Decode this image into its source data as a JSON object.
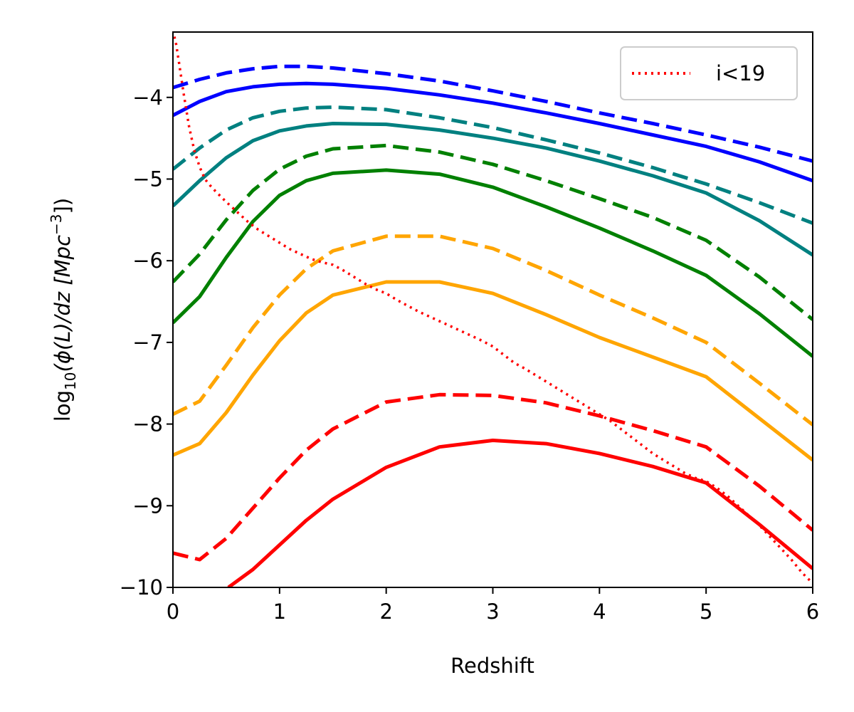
{
  "chart_data": {
    "type": "line",
    "xlabel": "Redshift",
    "ylabel_prefix": "log",
    "ylabel_sub": "10",
    "ylabel_main": "(ϕ(L)/dz [Mpc",
    "ylabel_sup": "−3",
    "ylabel_end": "])",
    "xlim": [
      0,
      6
    ],
    "ylim": [
      -10,
      -3.2
    ],
    "xticks": [
      0,
      1,
      2,
      3,
      4,
      5,
      6
    ],
    "xtick_labels": [
      "0",
      "1",
      "2",
      "3",
      "4",
      "5",
      "6"
    ],
    "yticks": [
      -10,
      -9,
      -8,
      -7,
      -6,
      -5,
      -4
    ],
    "ytick_labels": [
      "−10",
      "−9",
      "−8",
      "−7",
      "−6",
      "−5",
      "−4"
    ],
    "grid": false,
    "legend": {
      "position": "top-right",
      "entries": [
        {
          "label": "i<19",
          "color": "#ff0000",
          "style": "dotted"
        }
      ]
    },
    "series": [
      {
        "color": "#0000ff",
        "style": "dashed",
        "x": [
          0,
          0.25,
          0.5,
          0.75,
          1.0,
          1.25,
          1.5,
          2.0,
          2.5,
          3.0,
          3.5,
          4.0,
          4.5,
          5.0,
          5.5,
          6.0
        ],
        "y": [
          -3.88,
          -3.78,
          -3.7,
          -3.65,
          -3.62,
          -3.62,
          -3.64,
          -3.71,
          -3.8,
          -3.92,
          -4.05,
          -4.19,
          -4.32,
          -4.46,
          -4.61,
          -4.78
        ]
      },
      {
        "color": "#0000ff",
        "style": "solid",
        "x": [
          0,
          0.25,
          0.5,
          0.75,
          1.0,
          1.25,
          1.5,
          2.0,
          2.5,
          3.0,
          3.5,
          4.0,
          4.5,
          5.0,
          5.5,
          6.0
        ],
        "y": [
          -4.22,
          -4.05,
          -3.93,
          -3.87,
          -3.84,
          -3.83,
          -3.84,
          -3.89,
          -3.97,
          -4.07,
          -4.19,
          -4.32,
          -4.46,
          -4.6,
          -4.79,
          -5.02
        ]
      },
      {
        "color": "#008080",
        "style": "dashed",
        "x": [
          0,
          0.25,
          0.5,
          0.75,
          1.0,
          1.25,
          1.5,
          2.0,
          2.5,
          3.0,
          3.5,
          4.0,
          4.5,
          5.0,
          5.5,
          6.0
        ],
        "y": [
          -4.88,
          -4.62,
          -4.4,
          -4.25,
          -4.17,
          -4.13,
          -4.12,
          -4.15,
          -4.25,
          -4.37,
          -4.52,
          -4.68,
          -4.86,
          -5.06,
          -5.29,
          -5.54
        ]
      },
      {
        "color": "#008080",
        "style": "solid",
        "x": [
          0,
          0.25,
          0.5,
          0.75,
          1.0,
          1.25,
          1.5,
          2.0,
          2.5,
          3.0,
          3.5,
          4.0,
          4.5,
          5.0,
          5.5,
          6.0
        ],
        "y": [
          -5.33,
          -5.02,
          -4.74,
          -4.53,
          -4.41,
          -4.35,
          -4.32,
          -4.33,
          -4.4,
          -4.5,
          -4.62,
          -4.78,
          -4.96,
          -5.17,
          -5.51,
          -5.93
        ]
      },
      {
        "color": "#008000",
        "style": "dashed",
        "x": [
          0,
          0.25,
          0.5,
          0.75,
          1.0,
          1.25,
          1.5,
          2.0,
          2.5,
          3.0,
          3.5,
          4.0,
          4.5,
          5.0,
          5.5,
          6.0
        ],
        "y": [
          -6.26,
          -5.92,
          -5.5,
          -5.14,
          -4.88,
          -4.72,
          -4.63,
          -4.59,
          -4.67,
          -4.82,
          -5.02,
          -5.24,
          -5.47,
          -5.75,
          -6.2,
          -6.72
        ]
      },
      {
        "color": "#008000",
        "style": "solid",
        "x": [
          0,
          0.25,
          0.5,
          0.75,
          1.0,
          1.25,
          1.5,
          2.0,
          2.5,
          3.0,
          3.5,
          4.0,
          4.5,
          5.0,
          5.5,
          6.0
        ],
        "y": [
          -6.76,
          -6.44,
          -5.96,
          -5.52,
          -5.2,
          -5.02,
          -4.93,
          -4.89,
          -4.94,
          -5.1,
          -5.34,
          -5.6,
          -5.88,
          -6.18,
          -6.65,
          -7.17
        ]
      },
      {
        "color": "#ffa500",
        "style": "dashed",
        "x": [
          0,
          0.25,
          0.5,
          0.75,
          1.0,
          1.25,
          1.5,
          2.0,
          2.5,
          3.0,
          3.5,
          4.0,
          4.5,
          5.0,
          5.5,
          6.0
        ],
        "y": [
          -7.88,
          -7.72,
          -7.28,
          -6.82,
          -6.42,
          -6.1,
          -5.88,
          -5.7,
          -5.7,
          -5.85,
          -6.12,
          -6.42,
          -6.7,
          -7.0,
          -7.5,
          -8.01
        ]
      },
      {
        "color": "#ffa500",
        "style": "solid",
        "x": [
          0,
          0.25,
          0.5,
          0.75,
          1.0,
          1.25,
          1.5,
          2.0,
          2.5,
          3.0,
          3.5,
          4.0,
          4.5,
          5.0,
          5.5,
          6.0
        ],
        "y": [
          -8.38,
          -8.24,
          -7.86,
          -7.4,
          -6.98,
          -6.64,
          -6.42,
          -6.26,
          -6.26,
          -6.4,
          -6.66,
          -6.94,
          -7.18,
          -7.42,
          -7.93,
          -8.44
        ]
      },
      {
        "color": "#ff0000",
        "style": "dashed",
        "x": [
          0,
          0.25,
          0.5,
          0.75,
          1.0,
          1.25,
          1.5,
          2.0,
          2.5,
          3.0,
          3.5,
          4.0,
          4.5,
          5.0,
          5.5,
          6.0
        ],
        "y": [
          -9.58,
          -9.66,
          -9.4,
          -9.03,
          -8.66,
          -8.32,
          -8.06,
          -7.73,
          -7.64,
          -7.65,
          -7.74,
          -7.9,
          -8.08,
          -8.28,
          -8.76,
          -9.3
        ]
      },
      {
        "color": "#ff0000",
        "style": "solid",
        "x": [
          0.52,
          0.75,
          1.0,
          1.25,
          1.5,
          2.0,
          2.5,
          3.0,
          3.5,
          4.0,
          4.5,
          5.0,
          5.5,
          6.0
        ],
        "y": [
          -10.0,
          -9.78,
          -9.48,
          -9.18,
          -8.92,
          -8.53,
          -8.28,
          -8.2,
          -8.24,
          -8.36,
          -8.52,
          -8.72,
          -9.23,
          -9.77
        ]
      },
      {
        "color": "#ff0000",
        "style": "dotted",
        "name": "i<19",
        "x": [
          0,
          0.03,
          0.06,
          0.1,
          0.15,
          0.2,
          0.25,
          0.3,
          0.35,
          0.4,
          0.5,
          0.6,
          0.7,
          0.8,
          0.9,
          1.0,
          1.1,
          1.2,
          1.3,
          1.4,
          1.5,
          1.6,
          1.7,
          1.8,
          1.9,
          2.0,
          2.1,
          2.2,
          2.3,
          2.4,
          2.5,
          2.6,
          2.7,
          2.8,
          2.9,
          3.0,
          3.1,
          3.2,
          3.3,
          3.4,
          3.5,
          3.6,
          3.7,
          3.8,
          3.9,
          4.0,
          4.1,
          4.2,
          4.3,
          4.4,
          4.5,
          4.6,
          4.7,
          4.8,
          4.9,
          5.0,
          5.1,
          5.2,
          5.3,
          5.4,
          5.5,
          5.6,
          5.7,
          5.8,
          5.9,
          6.0
        ],
        "y": [
          -3.18,
          -3.35,
          -3.6,
          -3.95,
          -4.35,
          -4.65,
          -4.85,
          -5.0,
          -5.08,
          -5.15,
          -5.28,
          -5.4,
          -5.52,
          -5.62,
          -5.7,
          -5.78,
          -5.86,
          -5.92,
          -5.98,
          -6.02,
          -6.05,
          -6.12,
          -6.2,
          -6.28,
          -6.35,
          -6.4,
          -6.48,
          -6.55,
          -6.62,
          -6.68,
          -6.74,
          -6.8,
          -6.86,
          -6.92,
          -6.98,
          -7.05,
          -7.15,
          -7.25,
          -7.32,
          -7.4,
          -7.48,
          -7.56,
          -7.64,
          -7.72,
          -7.8,
          -7.88,
          -7.96,
          -8.06,
          -8.16,
          -8.26,
          -8.36,
          -8.44,
          -8.52,
          -8.6,
          -8.66,
          -8.7,
          -8.78,
          -8.88,
          -9.0,
          -9.12,
          -9.24,
          -9.38,
          -9.52,
          -9.66,
          -9.82,
          -9.95
        ]
      }
    ]
  }
}
